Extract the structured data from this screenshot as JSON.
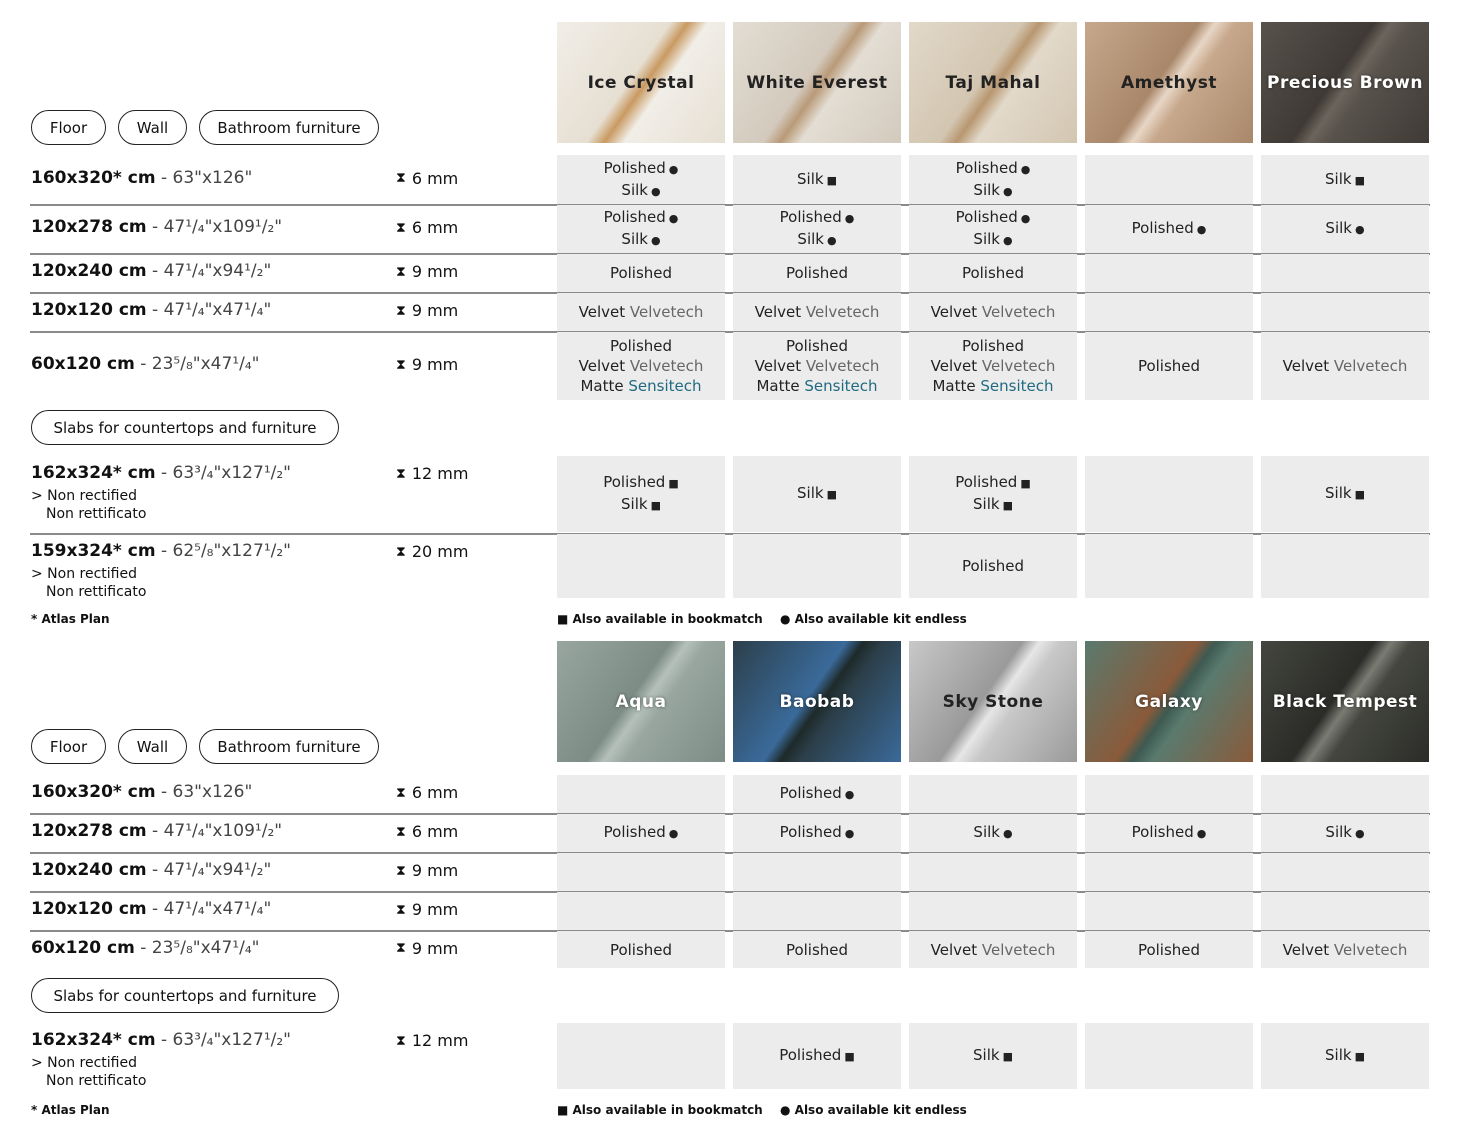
{
  "legend": {
    "square": "Also available in bookmatch",
    "dot": "Also available kit endless",
    "atlas": "* Atlas Plan"
  },
  "colors": {
    "cell_bg": "#ececec",
    "velvetech": "#666666",
    "sensitech": "#1f6a80"
  },
  "sections": [
    {
      "pills": [
        "Floor",
        "Wall",
        "Bathroom furniture"
      ],
      "slab_pill": "Slabs for countertops and furniture",
      "products": [
        {
          "name": "Ice Crystal",
          "swatch": [
            "#f1eee8",
            "#e6dfd2",
            "#c99a62"
          ],
          "dark": false
        },
        {
          "name": "White Everest",
          "swatch": [
            "#e3ddd3",
            "#d3cabd",
            "#b99a78"
          ],
          "dark": false
        },
        {
          "name": "Taj Mahal",
          "swatch": [
            "#e2d9ca",
            "#d3c6b1",
            "#b89770"
          ],
          "dark": false
        },
        {
          "name": "Amethyst",
          "swatch": [
            "#c7a88c",
            "#a9876a",
            "#e7d6c5"
          ],
          "dark": false
        },
        {
          "name": "Precious Brown",
          "swatch": [
            "#58524c",
            "#3f3a35",
            "#6b645c"
          ],
          "dark": true
        }
      ],
      "rows": [
        {
          "size": "160x320* cm",
          "imperial": "63\"x126\"",
          "thickness": "6 mm",
          "cells": [
            [
              [
                "Polished",
                "dot"
              ],
              [
                "Silk",
                "dot"
              ]
            ],
            [
              [
                "Silk",
                "square"
              ]
            ],
            [
              [
                "Polished",
                "dot"
              ],
              [
                "Silk",
                "dot"
              ]
            ],
            [],
            [
              [
                "Silk",
                "square"
              ]
            ]
          ]
        },
        {
          "size": "120x278 cm",
          "imperial": "47¹/₄\"x109¹/₂\"",
          "thickness": "6 mm",
          "cells": [
            [
              [
                "Polished",
                "dot"
              ],
              [
                "Silk",
                "dot"
              ]
            ],
            [
              [
                "Polished",
                "dot"
              ],
              [
                "Silk",
                "dot"
              ]
            ],
            [
              [
                "Polished",
                "dot"
              ],
              [
                "Silk",
                "dot"
              ]
            ],
            [
              [
                "Polished",
                "dot"
              ]
            ],
            [
              [
                "Silk",
                "dot"
              ]
            ]
          ]
        },
        {
          "size": "120x240 cm",
          "imperial": "47¹/₄\"x94¹/₂\"",
          "thickness": "9 mm",
          "cells": [
            [
              [
                "Polished"
              ]
            ],
            [
              [
                "Polished"
              ]
            ],
            [
              [
                "Polished"
              ]
            ],
            [],
            []
          ]
        },
        {
          "size": "120x120 cm",
          "imperial": "47¹/₄\"x47¹/₄\"",
          "thickness": "9 mm",
          "cells": [
            [
              [
                "Velvet",
                "",
                "Velvetech"
              ]
            ],
            [
              [
                "Velvet",
                "",
                "Velvetech"
              ]
            ],
            [
              [
                "Velvet",
                "",
                "Velvetech"
              ]
            ],
            [],
            []
          ]
        },
        {
          "size": "60x120 cm",
          "imperial": "23⁵/₈\"x47¹/₄\"",
          "thickness": "9 mm",
          "cells": [
            [
              [
                "Polished"
              ],
              [
                "Velvet",
                "",
                "Velvetech"
              ],
              [
                "Matte",
                "",
                "Sensitech"
              ]
            ],
            [
              [
                "Polished"
              ],
              [
                "Velvet",
                "",
                "Velvetech"
              ],
              [
                "Matte",
                "",
                "Sensitech"
              ]
            ],
            [
              [
                "Polished"
              ],
              [
                "Velvet",
                "",
                "Velvetech"
              ],
              [
                "Matte",
                "",
                "Sensitech"
              ]
            ],
            [
              [
                "Polished"
              ]
            ],
            [
              [
                "Velvet",
                "",
                "Velvetech"
              ]
            ]
          ]
        }
      ],
      "slabs": [
        {
          "size": "162x324* cm",
          "imperial": "63³/₄\"x127¹/₂\"",
          "thickness": "12 mm",
          "note1": "> Non rectified",
          "note2": "Non rettificato",
          "cells": [
            [
              [
                "Polished",
                "square"
              ],
              [
                "Silk",
                "square"
              ]
            ],
            [
              [
                "Silk",
                "square"
              ]
            ],
            [
              [
                "Polished",
                "square"
              ],
              [
                "Silk",
                "square"
              ]
            ],
            [],
            [
              [
                "Silk",
                "square"
              ]
            ]
          ]
        },
        {
          "size": "159x324* cm",
          "imperial": "62⁵/₈\"x127¹/₂\"",
          "thickness": "20 mm",
          "note1": "> Non rectified",
          "note2": "Non rettificato",
          "cells": [
            [],
            [],
            [
              [
                "Polished"
              ]
            ],
            [],
            []
          ]
        }
      ]
    },
    {
      "pills": [
        "Floor",
        "Wall",
        "Bathroom furniture"
      ],
      "slab_pill": "Slabs for countertops and furniture",
      "products": [
        {
          "name": "Aqua",
          "swatch": [
            "#98a69f",
            "#7d8d86",
            "#b5c0ba"
          ],
          "dark": true
        },
        {
          "name": "Baobab",
          "swatch": [
            "#2c3f4a",
            "#3a6a9a",
            "#1e2a2a"
          ],
          "dark": true
        },
        {
          "name": "Sky Stone",
          "swatch": [
            "#c8c8c8",
            "#9a9a9a",
            "#e6e6e6"
          ],
          "dark": false
        },
        {
          "name": "Galaxy",
          "swatch": [
            "#5a7a6e",
            "#8a5a3a",
            "#3e5a52"
          ],
          "dark": true
        },
        {
          "name": "Black Tempest",
          "swatch": [
            "#44463f",
            "#2b2c28",
            "#7a7c74"
          ],
          "dark": true
        }
      ],
      "rows": [
        {
          "size": "160x320* cm",
          "imperial": "63\"x126\"",
          "thickness": "6 mm",
          "cells": [
            [],
            [
              [
                "Polished",
                "dot"
              ]
            ],
            [],
            [],
            []
          ]
        },
        {
          "size": "120x278 cm",
          "imperial": "47¹/₄\"x109¹/₂\"",
          "thickness": "6 mm",
          "cells": [
            [
              [
                "Polished",
                "dot"
              ]
            ],
            [
              [
                "Polished",
                "dot"
              ]
            ],
            [
              [
                "Silk",
                "dot"
              ]
            ],
            [
              [
                "Polished",
                "dot"
              ]
            ],
            [
              [
                "Silk",
                "dot"
              ]
            ]
          ]
        },
        {
          "size": "120x240 cm",
          "imperial": "47¹/₄\"x94¹/₂\"",
          "thickness": "9 mm",
          "cells": [
            [],
            [],
            [],
            [],
            []
          ]
        },
        {
          "size": "120x120 cm",
          "imperial": "47¹/₄\"x47¹/₄\"",
          "thickness": "9 mm",
          "cells": [
            [],
            [],
            [],
            [],
            []
          ]
        },
        {
          "size": "60x120 cm",
          "imperial": "23⁵/₈\"x47¹/₄\"",
          "thickness": "9 mm",
          "cells": [
            [
              [
                "Polished"
              ]
            ],
            [
              [
                "Polished"
              ]
            ],
            [
              [
                "Velvet",
                "",
                "Velvetech"
              ]
            ],
            [
              [
                "Polished"
              ]
            ],
            [
              [
                "Velvet",
                "",
                "Velvetech"
              ]
            ]
          ]
        }
      ],
      "slabs": [
        {
          "size": "162x324* cm",
          "imperial": "63³/₄\"x127¹/₂\"",
          "thickness": "12 mm",
          "note1": "> Non rectified",
          "note2": "Non rettificato",
          "cells": [
            [],
            [
              [
                "Polished",
                "square"
              ]
            ],
            [
              [
                "Silk",
                "square"
              ]
            ],
            [],
            [
              [
                "Silk",
                "square"
              ]
            ]
          ]
        }
      ]
    }
  ]
}
